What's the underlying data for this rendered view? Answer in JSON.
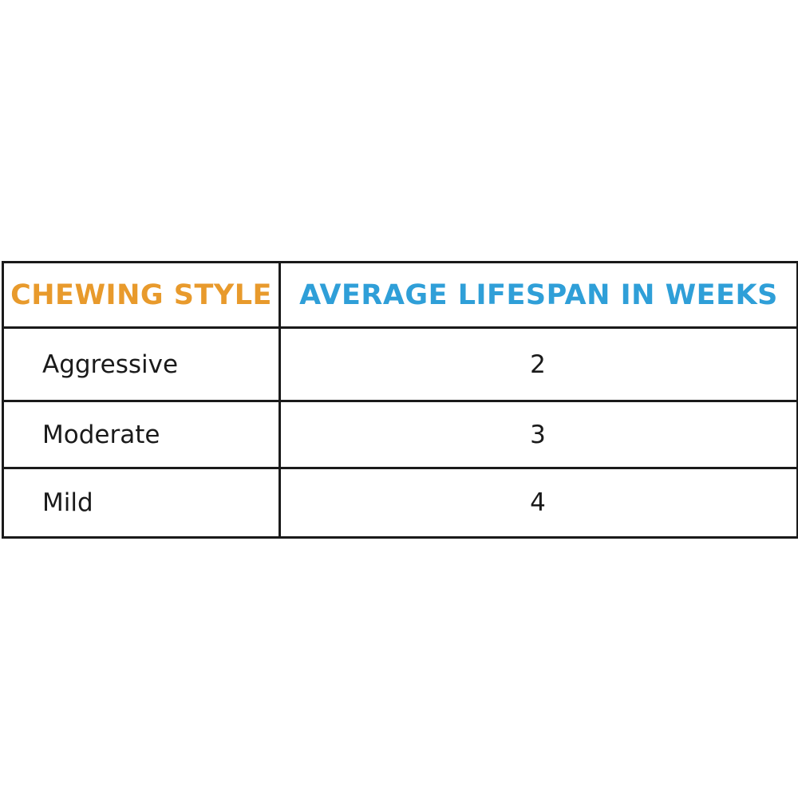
{
  "colors": {
    "style_header": "#e89a2c",
    "lifespan_header": "#2f9fd8",
    "border": "#1a1a1a",
    "text": "#1a1a1a"
  },
  "chart_data": {
    "type": "table",
    "columns": [
      "CHEWING STYLE",
      "AVERAGE LIFESPAN IN WEEKS"
    ],
    "rows": [
      {
        "style": "Aggressive",
        "weeks": "2"
      },
      {
        "style": "Moderate",
        "weeks": "3"
      },
      {
        "style": "Mild",
        "weeks": "4"
      }
    ]
  }
}
